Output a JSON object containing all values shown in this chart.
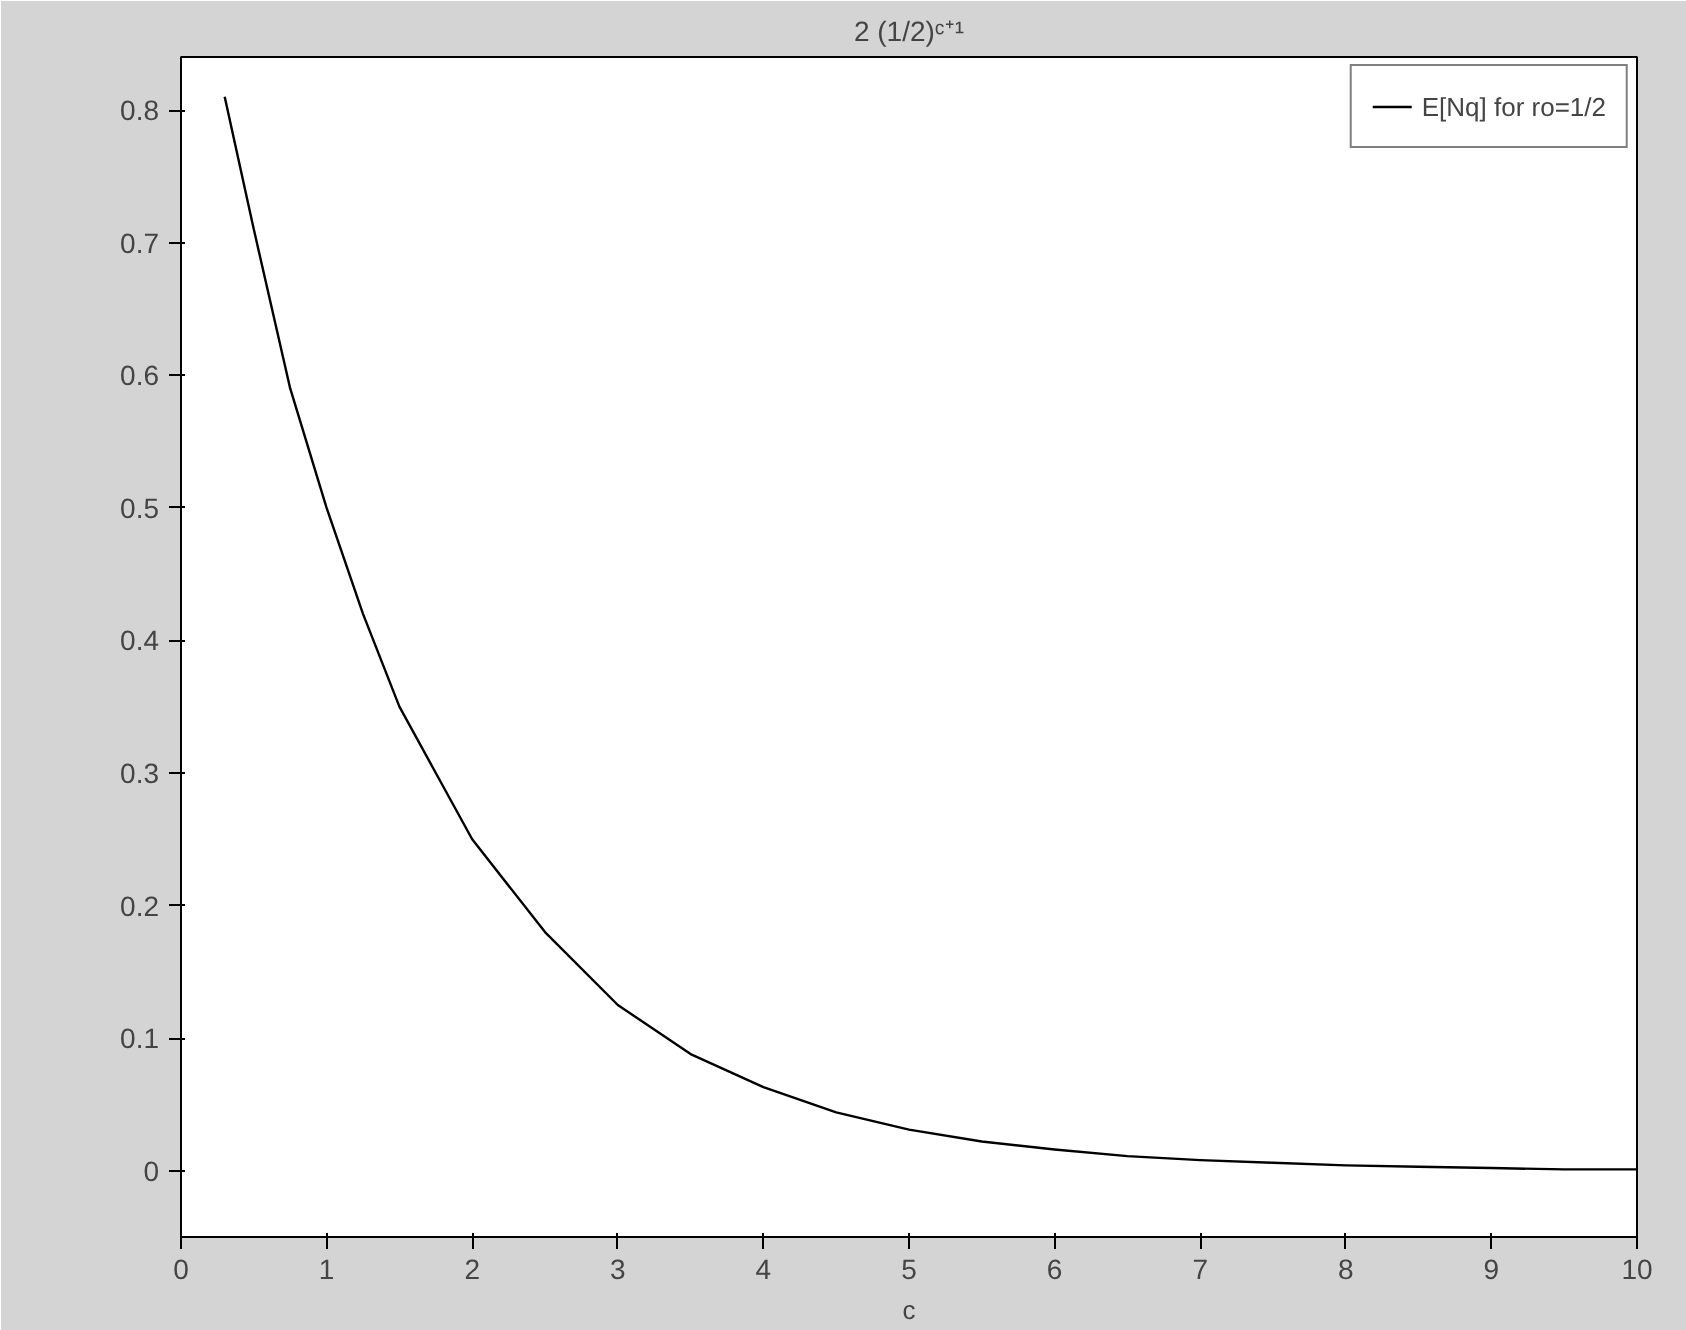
{
  "chart_data": {
    "type": "line",
    "title": "2 (1/2)ᶜ⁺¹",
    "xlabel": "c",
    "x": [
      0.3,
      0.5,
      0.75,
      1,
      1.25,
      1.5,
      1.75,
      2,
      2.5,
      3,
      3.5,
      4,
      4.5,
      5,
      5.5,
      6,
      6.5,
      7,
      7.5,
      8,
      8.5,
      9,
      9.5,
      10
    ],
    "series": [
      {
        "name": "E[Nq] for ro=1/2",
        "color": "#000000",
        "values": [
          0.81,
          0.71,
          0.59,
          0.5,
          0.42,
          0.35,
          0.3,
          0.25,
          0.18,
          0.125,
          0.088,
          0.063,
          0.044,
          0.031,
          0.022,
          0.016,
          0.011,
          0.008,
          0.006,
          0.004,
          0.003,
          0.002,
          0.001,
          0.001
        ]
      }
    ],
    "xlim": [
      0,
      10
    ],
    "ylim": [
      -0.05,
      0.84
    ],
    "xticks": [
      0,
      1,
      2,
      3,
      4,
      5,
      6,
      7,
      8,
      9,
      10
    ],
    "yticks": [
      0,
      0.1,
      0.2,
      0.3,
      0.4,
      0.5,
      0.6,
      0.7,
      0.8
    ],
    "grid": false,
    "legend": "top right",
    "line_style": "solid",
    "marker": "none"
  }
}
